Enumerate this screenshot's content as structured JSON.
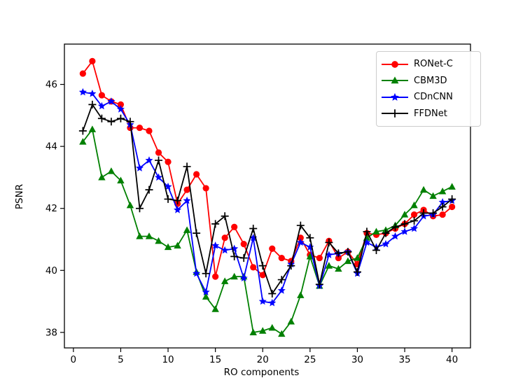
{
  "chart_data": {
    "type": "line",
    "title": "",
    "xlabel": "RO components",
    "ylabel": "PSNR",
    "xlim": [
      -0.95,
      41.95
    ],
    "ylim": [
      37.5,
      47.3
    ],
    "xticks": [
      0,
      5,
      10,
      15,
      20,
      25,
      30,
      35,
      40
    ],
    "yticks": [
      38,
      40,
      42,
      44,
      46
    ],
    "grid": false,
    "legend_position": "upper right",
    "x": [
      1,
      2,
      3,
      4,
      5,
      6,
      7,
      8,
      9,
      10,
      11,
      12,
      13,
      14,
      15,
      16,
      17,
      18,
      19,
      20,
      21,
      22,
      23,
      24,
      25,
      26,
      27,
      28,
      29,
      30,
      31,
      32,
      33,
      34,
      35,
      36,
      37,
      38,
      39,
      40
    ],
    "series": [
      {
        "name": "RONet-C",
        "color": "#ff0000",
        "marker": "circle",
        "values": [
          46.35,
          46.75,
          45.65,
          45.45,
          45.35,
          44.6,
          44.6,
          44.5,
          43.8,
          43.5,
          42.15,
          42.6,
          43.1,
          42.65,
          39.8,
          41.05,
          41.4,
          40.85,
          40.1,
          39.85,
          40.7,
          40.4,
          40.3,
          41.05,
          40.5,
          40.4,
          40.95,
          40.4,
          40.6,
          40.2,
          41.2,
          41.15,
          41.2,
          41.35,
          41.5,
          41.8,
          41.95,
          41.75,
          41.8,
          42.05
        ]
      },
      {
        "name": "CBM3D",
        "color": "#008000",
        "marker": "triangle",
        "values": [
          44.15,
          44.55,
          43.0,
          43.2,
          42.9,
          42.1,
          41.1,
          41.1,
          40.95,
          40.75,
          40.8,
          41.3,
          39.95,
          39.15,
          38.75,
          39.65,
          39.8,
          39.8,
          38.0,
          38.05,
          38.15,
          37.95,
          38.35,
          39.2,
          40.45,
          39.5,
          40.15,
          40.05,
          40.3,
          40.4,
          41.05,
          41.25,
          41.3,
          41.45,
          41.8,
          42.1,
          42.6,
          42.4,
          42.55,
          42.7
        ]
      },
      {
        "name": "CDnCNN",
        "color": "#0000ff",
        "marker": "star",
        "values": [
          45.75,
          45.7,
          45.3,
          45.45,
          45.2,
          44.7,
          43.3,
          43.55,
          43.0,
          42.7,
          41.95,
          42.25,
          39.9,
          39.3,
          40.8,
          40.65,
          40.7,
          39.75,
          41.05,
          39.0,
          38.95,
          39.35,
          40.2,
          40.9,
          40.75,
          39.5,
          40.5,
          40.55,
          40.6,
          39.9,
          40.9,
          40.75,
          40.85,
          41.1,
          41.25,
          41.35,
          41.75,
          41.8,
          42.2,
          42.25
        ]
      },
      {
        "name": "FFDNet",
        "color": "#000000",
        "marker": "plus",
        "values": [
          44.5,
          45.35,
          44.9,
          44.8,
          44.9,
          44.8,
          42.0,
          42.6,
          43.55,
          42.3,
          42.25,
          43.35,
          41.2,
          39.9,
          41.5,
          41.75,
          40.45,
          40.4,
          41.35,
          40.15,
          39.25,
          39.7,
          40.15,
          41.45,
          41.05,
          39.55,
          40.9,
          40.55,
          40.6,
          39.95,
          41.25,
          40.65,
          41.2,
          41.4,
          41.5,
          41.6,
          41.85,
          41.85,
          42.05,
          42.3
        ]
      }
    ]
  }
}
